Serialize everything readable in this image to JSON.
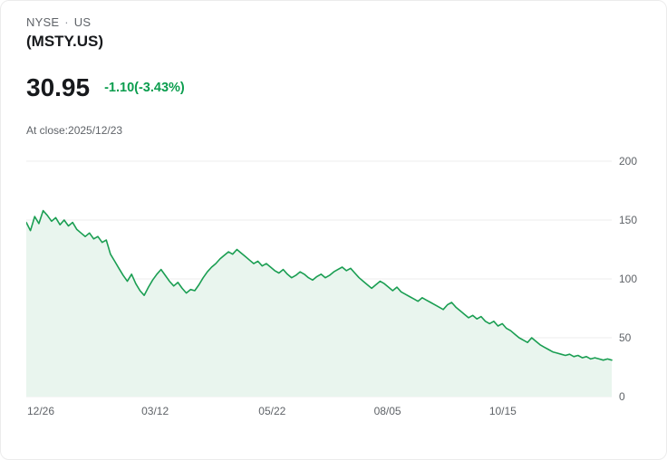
{
  "header": {
    "exchange": "NYSE",
    "dot": "·",
    "region": "US",
    "symbol": "(MSTY.US)"
  },
  "quote": {
    "price": "30.95",
    "change": "-1.10(-3.43%)",
    "at_close": "At close:2025/12/23"
  },
  "colors": {
    "line": "#1a9e52",
    "fill": "#e9f5ee",
    "change_text": "#0b9d4e",
    "grid": "#ececec",
    "axis_text": "#5f6368"
  },
  "chart_data": {
    "type": "area",
    "title": "MSTY.US price history, one year",
    "xlabel": "",
    "ylabel": "",
    "grid": true,
    "legend": false,
    "ylim": [
      0,
      200
    ],
    "y_ticks": [
      0,
      50,
      100,
      150,
      200
    ],
    "x_tick_labels": [
      "12/26",
      "03/12",
      "05/22",
      "08/05",
      "10/15"
    ],
    "x_tick_positions": [
      0.02,
      0.22,
      0.42,
      0.617,
      0.814
    ],
    "values": [
      148,
      141,
      153,
      147,
      158,
      154,
      149,
      152,
      146,
      150,
      145,
      148,
      142,
      139,
      136,
      139,
      134,
      136,
      131,
      133,
      121,
      115,
      109,
      103,
      98,
      104,
      96,
      90,
      86,
      93,
      99,
      104,
      108,
      103,
      98,
      94,
      97,
      92,
      88,
      91,
      90,
      95,
      101,
      106,
      110,
      113,
      117,
      120,
      123,
      121,
      125,
      122,
      119,
      116,
      113,
      115,
      111,
      113,
      110,
      107,
      105,
      108,
      104,
      101,
      103,
      106,
      104,
      101,
      99,
      102,
      104,
      101,
      103,
      106,
      108,
      110,
      107,
      109,
      105,
      101,
      98,
      95,
      92,
      95,
      98,
      96,
      93,
      90,
      93,
      89,
      87,
      85,
      83,
      81,
      84,
      82,
      80,
      78,
      76,
      74,
      78,
      80,
      76,
      73,
      70,
      67,
      69,
      66,
      68,
      64,
      62,
      64,
      60,
      62,
      58,
      56,
      53,
      50,
      48,
      46,
      50,
      47,
      44,
      42,
      40,
      38,
      37,
      36,
      35,
      36,
      34,
      35,
      33,
      34,
      32,
      33,
      32,
      31,
      32,
      31
    ]
  }
}
